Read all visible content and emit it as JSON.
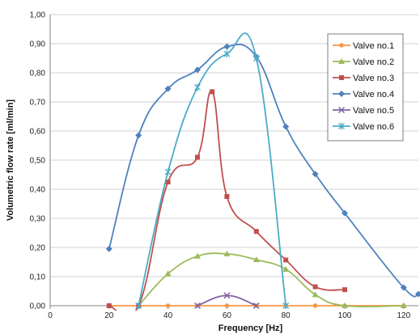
{
  "chart_data": {
    "type": "line",
    "title": "",
    "xlabel": "Frequency [Hz]",
    "ylabel": "Volumetric flow rate [ml/min]",
    "xlim": [
      0,
      125
    ],
    "ylim": [
      0,
      1.0
    ],
    "x_ticks": [
      0,
      20,
      40,
      60,
      80,
      100,
      120
    ],
    "x_tick_labels": [
      "0",
      "20",
      "40",
      "60",
      "80",
      "100",
      "120"
    ],
    "y_ticks": [
      0,
      0.1,
      0.2,
      0.3,
      0.4,
      0.5,
      0.6,
      0.7,
      0.8,
      0.9,
      1.0
    ],
    "y_tick_labels": [
      "0,00",
      "0,10",
      "0,20",
      "0,30",
      "0,40",
      "0,50",
      "0,60",
      "0,70",
      "0,80",
      "0,90",
      "1,00"
    ],
    "grid": true,
    "legend_position": "top-right",
    "series": [
      {
        "name": "Valve no.1",
        "color": "#F79646",
        "marker": "circle",
        "points": [
          [
            20,
            0
          ],
          [
            30,
            0
          ],
          [
            40,
            0
          ],
          [
            50,
            0
          ],
          [
            60,
            0
          ],
          [
            70,
            0
          ],
          [
            80,
            0
          ],
          [
            90,
            0
          ],
          [
            100,
            0
          ],
          [
            120,
            0
          ]
        ]
      },
      {
        "name": "Valve no.2",
        "color": "#9BBB59",
        "marker": "triangle",
        "points": [
          [
            30,
            0
          ],
          [
            40,
            0.11
          ],
          [
            50,
            0.17
          ],
          [
            60,
            0.178
          ],
          [
            70,
            0.158
          ],
          [
            80,
            0.125
          ],
          [
            90,
            0.038
          ],
          [
            100,
            0
          ],
          [
            120,
            0
          ]
        ]
      },
      {
        "name": "Valve no.3",
        "color": "#C0504D",
        "marker": "square",
        "points": [
          [
            20,
            0
          ],
          [
            30,
            0
          ],
          [
            40,
            0.425
          ],
          [
            50,
            0.51
          ],
          [
            55,
            0.735
          ],
          [
            60,
            0.375
          ],
          [
            70,
            0.255
          ],
          [
            80,
            0.157
          ],
          [
            90,
            0.065
          ],
          [
            100,
            0.055
          ]
        ]
      },
      {
        "name": "Valve no.4",
        "color": "#4F81BD",
        "marker": "diamond",
        "points": [
          [
            20,
            0.195
          ],
          [
            30,
            0.585
          ],
          [
            40,
            0.745
          ],
          [
            50,
            0.81
          ],
          [
            60,
            0.89
          ],
          [
            70,
            0.855
          ],
          [
            80,
            0.615
          ],
          [
            90,
            0.452
          ],
          [
            100,
            0.318
          ],
          [
            120,
            0.062
          ],
          [
            125,
            0.04
          ]
        ]
      },
      {
        "name": "Valve no.5",
        "color": "#8064A2",
        "marker": "x",
        "points": [
          [
            50,
            0
          ],
          [
            60,
            0.035
          ],
          [
            70,
            0
          ]
        ]
      },
      {
        "name": "Valve no.6",
        "color": "#4BACC6",
        "marker": "star",
        "points": [
          [
            30,
            0
          ],
          [
            40,
            0.46
          ],
          [
            50,
            0.75
          ],
          [
            60,
            0.865
          ],
          [
            70,
            0.85
          ],
          [
            80,
            0
          ]
        ]
      }
    ]
  }
}
